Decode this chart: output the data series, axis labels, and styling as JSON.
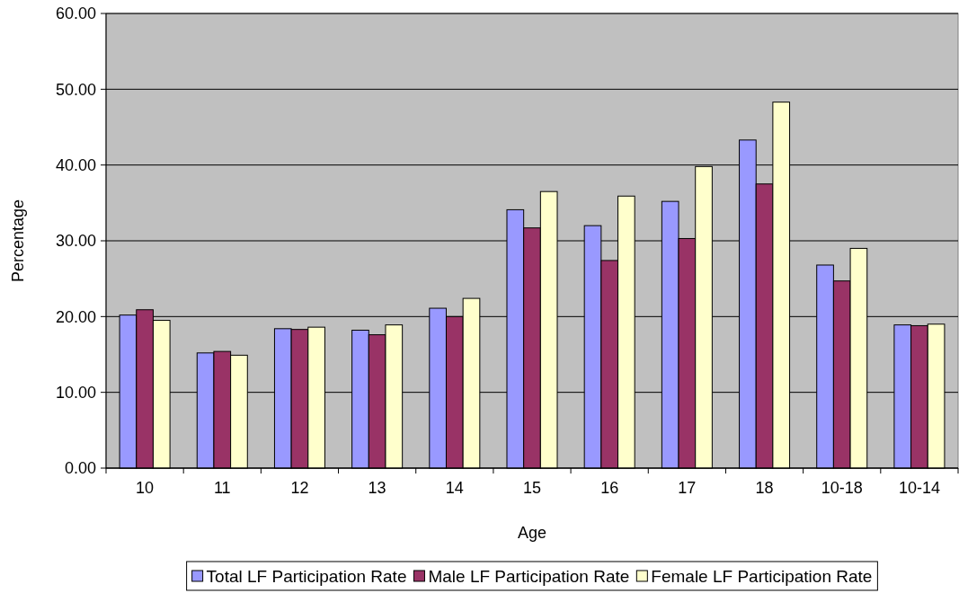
{
  "chart_data": {
    "type": "bar",
    "xlabel": "Age",
    "ylabel": "Percentage",
    "categories": [
      "10",
      "11",
      "12",
      "13",
      "14",
      "15",
      "16",
      "17",
      "18",
      "10-18",
      "10-14"
    ],
    "series": [
      {
        "name": "Total LF Participation Rate",
        "color": "#9999ff",
        "values": [
          20.2,
          15.2,
          18.4,
          18.2,
          21.1,
          34.1,
          32.0,
          35.2,
          43.3,
          26.8,
          18.9
        ]
      },
      {
        "name": "Male LF Participation Rate",
        "color": "#993366",
        "values": [
          20.9,
          15.4,
          18.3,
          17.6,
          20.0,
          31.7,
          27.4,
          30.3,
          37.5,
          24.7,
          18.8
        ]
      },
      {
        "name": "Female LF Participation Rate",
        "color": "#ffffcc",
        "values": [
          19.5,
          14.9,
          18.6,
          18.9,
          22.4,
          36.5,
          35.9,
          39.8,
          48.3,
          29.0,
          19.0
        ]
      }
    ],
    "ylim": [
      0,
      60
    ],
    "yticks": [
      {
        "value": 0,
        "label": "0.00"
      },
      {
        "value": 10,
        "label": "10.00"
      },
      {
        "value": 20,
        "label": "20.00"
      },
      {
        "value": 30,
        "label": "30.00"
      },
      {
        "value": 40,
        "label": "40.00"
      },
      {
        "value": 50,
        "label": "50.00"
      },
      {
        "value": 60,
        "label": "60.00"
      }
    ],
    "grid": "y",
    "legend": "bottom"
  }
}
